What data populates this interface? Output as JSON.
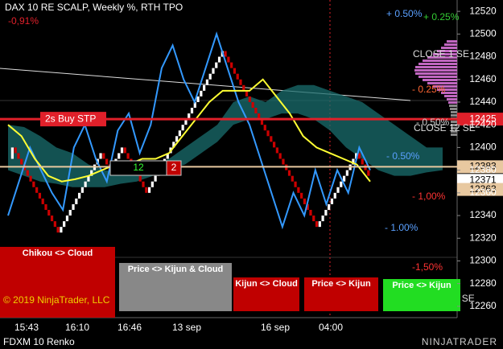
{
  "chart_data": {
    "type": "renko",
    "title": "DAX 10 RE SCALP, Weekly %, RTH TPO",
    "subtitle": "-0,91%",
    "ylim": [
      12250,
      12530
    ],
    "yticks": [
      12260,
      12280,
      12300,
      12320,
      12340,
      12360,
      12380,
      12400,
      12420,
      12440,
      12460,
      12480,
      12500,
      12520
    ],
    "x_labels": [
      "15:43",
      "16:10",
      "16:46",
      "13 sep",
      "16 sep",
      "04:00"
    ],
    "up_color": "#ffffff",
    "down_color": "#cc0000",
    "bricks": [
      12390,
      12400,
      12395,
      12390,
      12385,
      12380,
      12375,
      12370,
      12365,
      12360,
      12355,
      12350,
      12345,
      12340,
      12335,
      12330,
      12325,
      12330,
      12335,
      12340,
      12345,
      12350,
      12355,
      12360,
      12365,
      12370,
      12375,
      12380,
      12385,
      12390,
      12395,
      12390,
      12385,
      12380,
      12385,
      12390,
      12395,
      12400,
      12395,
      12390,
      12385,
      12380,
      12375,
      12370,
      12365,
      12360,
      12365,
      12370,
      12375,
      12380,
      12385,
      12390,
      12395,
      12400,
      12405,
      12410,
      12415,
      12420,
      12425,
      12430,
      12435,
      12440,
      12445,
      12450,
      12455,
      12460,
      12465,
      12470,
      12475,
      12480,
      12485,
      12480,
      12475,
      12470,
      12465,
      12460,
      12455,
      12450,
      12445,
      12440,
      12435,
      12430,
      12425,
      12420,
      12415,
      12410,
      12405,
      12400,
      12395,
      12390,
      12385,
      12380,
      12375,
      12370,
      12365,
      12360,
      12355,
      12350,
      12345,
      12340,
      12335,
      12330,
      12335,
      12340,
      12345,
      12350,
      12355,
      12360,
      12365,
      12370,
      12375,
      12380,
      12385,
      12390,
      12395,
      12390,
      12385,
      12380,
      12375
    ],
    "series": [
      {
        "color": "#3399ff",
        "values": [
          12340,
          12370,
          12400,
          12380,
          12360,
          12345,
          12400,
          12420,
          12390,
          12370,
          12415,
          12430,
          12395,
          12420,
          12470,
          12490,
          12460,
          12440,
          12470,
          12500,
          12470,
          12440,
          12420,
          12390,
          12360,
          12330,
          12360,
          12340,
          12380,
          12350,
          12380,
          12360,
          12400,
          12380
        ]
      },
      {
        "color": "#ffff33",
        "values": [
          12420,
          12410,
          12390,
          12375,
          12370,
          12372,
          12375,
          12380,
          12385,
          12385,
          12390,
          12390,
          12395,
          12410,
          12425,
          12440,
          12450,
          12450,
          12450,
          12460,
          12445,
          12430,
          12410,
          12400,
          12395,
          12390,
          12385,
          12370
        ]
      }
    ],
    "cloud": {
      "color": "#1a6e6e",
      "upper": [
        12420,
        12418,
        12410,
        12400,
        12395,
        12385,
        12380,
        12378,
        12380,
        12385,
        12390,
        12400,
        12410,
        12420,
        12440,
        12445,
        12440,
        12450,
        12455,
        12455,
        12450,
        12445,
        12440,
        12430,
        12420,
        12410,
        12400,
        12400
      ],
      "lower": [
        12380,
        12375,
        12370,
        12368,
        12365,
        12365,
        12365,
        12368,
        12370,
        12375,
        12380,
        12385,
        12395,
        12405,
        12420,
        12425,
        12425,
        12430,
        12430,
        12425,
        12415,
        12400,
        12390,
        12380,
        12375,
        12375,
        12378,
        12380
      ]
    },
    "price_levels": [
      {
        "value": 12425,
        "color": "#e0202a"
      },
      {
        "value": 12383,
        "color": "#e8c8a0"
      },
      {
        "value": 12371,
        "color": "#ffffff"
      },
      {
        "value": 12363,
        "color": "#e8c8a0"
      }
    ]
  },
  "overlay": {
    "order_label": "2s  Buy STP",
    "order_qty": "12",
    "order_count": "2",
    "pct_levels": [
      "+ 0.50%",
      "+ 0.25%",
      "- 0.25%",
      "- 0.50%",
      "- 0.50%",
      "- 1,00%",
      "- 1.00%",
      "-1,50%"
    ],
    "close_labels": [
      "CLOSE 12 SE",
      "CLOSE 10 SE",
      "CLOSE 1 SE"
    ],
    "buttons": [
      "Chikou <> Cloud",
      "Price <> Kijun & Cloud",
      "Kijun <> Cloud",
      "Price <> Kijun",
      "Price <> Kijun"
    ],
    "copyright": "© 2019 NinjaTrader, LLC",
    "instrument": "FDXM 10 Renko",
    "logo": "NINJATRADER"
  }
}
